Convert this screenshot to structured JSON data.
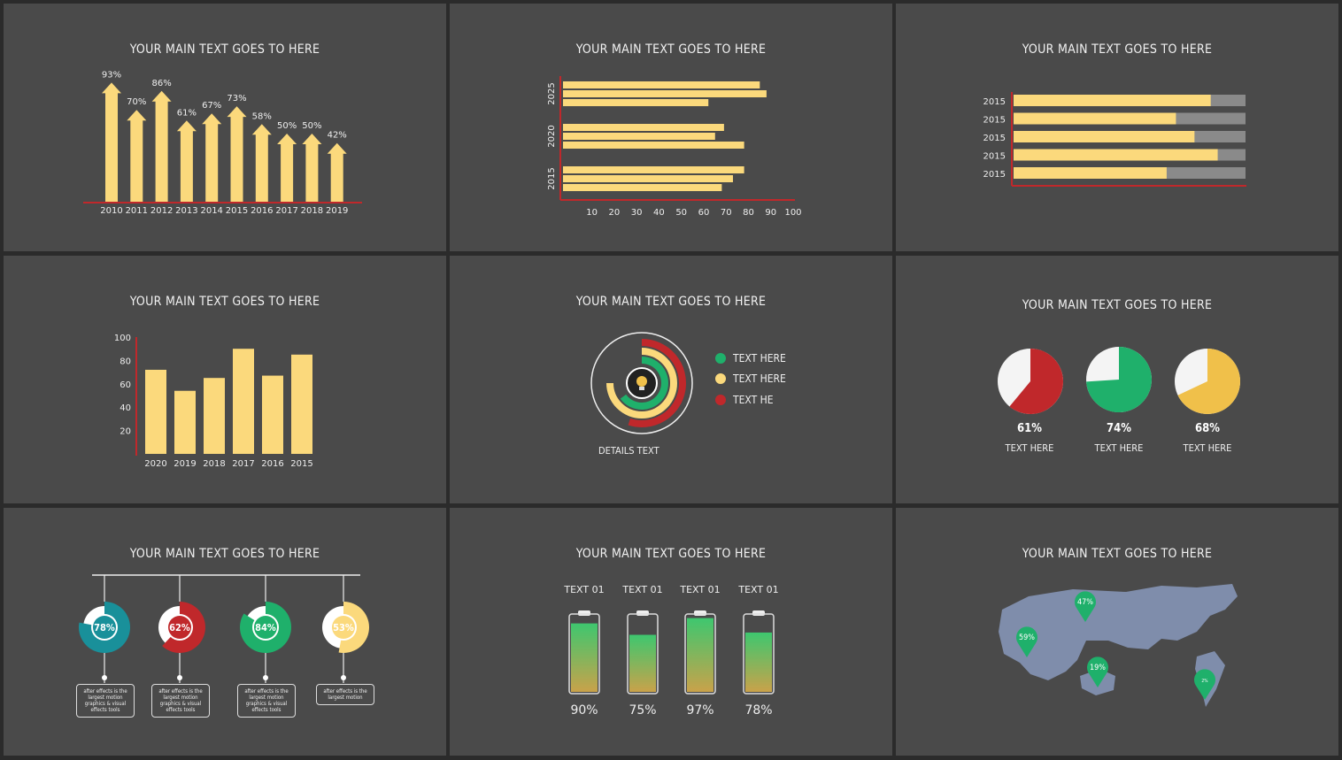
{
  "colors": {
    "yellow": "#fbd97c",
    "red": "#c0282b",
    "green": "#1fb06b",
    "teal": "#19909a",
    "gold": "#f0c04a",
    "gray": "#8a8a8a",
    "panel": "#4a4a4a"
  },
  "panels": {
    "p1": {
      "title": "YOUR MAIN TEXT GOES TO HERE"
    },
    "p2": {
      "title": "YOUR MAIN TEXT GOES TO HERE"
    },
    "p3": {
      "title": "YOUR MAIN TEXT GOES TO HERE"
    },
    "p4": {
      "title": "YOUR MAIN TEXT GOES TO HERE"
    },
    "p5": {
      "title": "YOUR MAIN TEXT GOES TO HERE",
      "details": "DETAILS TEXT",
      "legend": [
        {
          "label": "TEXT HERE",
          "color": "#1fb06b"
        },
        {
          "label": "TEXT HERE",
          "color": "#fbd97c"
        },
        {
          "label": "TEXT HE",
          "color": "#c0282b"
        }
      ]
    },
    "p6": {
      "title": "YOUR MAIN TEXT GOES TO HERE"
    },
    "p7": {
      "title": "YOUR MAIN TEXT GOES TO HERE",
      "box_text": "after effects is the largest motion graphics & visual effects tools",
      "box_text_short": "after effects is the largest motion"
    },
    "p8": {
      "title": "YOUR MAIN TEXT GOES TO HERE"
    },
    "p9": {
      "title": "YOUR MAIN TEXT GOES TO HERE"
    }
  },
  "chart_data": [
    {
      "type": "bar",
      "id": "arrow-bars",
      "categories": [
        "2010",
        "2011",
        "2012",
        "2013",
        "2014",
        "2015",
        "2016",
        "2017",
        "2018",
        "2019"
      ],
      "values": [
        93,
        70,
        86,
        61,
        67,
        73,
        58,
        50,
        50,
        42
      ],
      "value_labels": [
        "93%",
        "70%",
        "86%",
        "61%",
        "67%",
        "73%",
        "58%",
        "50%",
        "50%",
        "42%"
      ],
      "ylim": [
        0,
        100
      ]
    },
    {
      "type": "bar",
      "id": "horizontal-groups",
      "orientation": "horizontal",
      "categories": [
        "2025",
        "2020",
        "2015"
      ],
      "series": [
        {
          "values": [
            93,
            77,
            86
          ]
        },
        {
          "values": [
            96,
            73,
            81
          ]
        },
        {
          "values": [
            70,
            86,
            76
          ]
        }
      ],
      "xticks": [
        10,
        20,
        30,
        40,
        50,
        60,
        70,
        80,
        90,
        100
      ],
      "xlim": [
        5,
        100
      ]
    },
    {
      "type": "bar",
      "id": "progress-bars",
      "orientation": "horizontal",
      "categories": [
        "2015",
        "2015",
        "2015",
        "2015",
        "2015"
      ],
      "values": [
        85,
        70,
        78,
        88,
        66
      ],
      "max": 100
    },
    {
      "type": "bar",
      "id": "vertical-bars",
      "categories": [
        "2020",
        "2019",
        "2018",
        "2017",
        "2016",
        "2015"
      ],
      "values": [
        72,
        54,
        65,
        90,
        67,
        85
      ],
      "yticks": [
        20,
        40,
        60,
        80,
        100
      ],
      "ylim": [
        0,
        100
      ]
    },
    {
      "type": "pie",
      "id": "radial-rings",
      "series": [
        {
          "name": "TEXT HERE",
          "value": 65,
          "color": "#1fb06b"
        },
        {
          "name": "TEXT HERE",
          "value": 75,
          "color": "#fbd97c"
        },
        {
          "name": "TEXT HE",
          "value": 55,
          "color": "#c0282b"
        }
      ]
    },
    {
      "type": "pie",
      "id": "three-pies",
      "items": [
        {
          "value": 61,
          "label": "61%",
          "caption": "TEXT HERE",
          "color": "#c0282b"
        },
        {
          "value": 74,
          "label": "74%",
          "caption": "TEXT HERE",
          "color": "#1fb06b"
        },
        {
          "value": 68,
          "label": "68%",
          "caption": "TEXT HERE",
          "color": "#f0c04a"
        }
      ]
    },
    {
      "type": "pie",
      "id": "donut-steps",
      "items": [
        {
          "value": 78,
          "label": "78%",
          "color": "#19909a"
        },
        {
          "value": 62,
          "label": "62%",
          "color": "#c0282b"
        },
        {
          "value": 84,
          "label": "84%",
          "color": "#1fb06b"
        },
        {
          "value": 53,
          "label": "53%",
          "color": "#fbd97c"
        }
      ]
    },
    {
      "type": "bar",
      "id": "batteries",
      "categories": [
        "TEXT 01",
        "TEXT 01",
        "TEXT 01",
        "TEXT 01"
      ],
      "values": [
        90,
        75,
        97,
        78
      ],
      "value_labels": [
        "90%",
        "75%",
        "97%",
        "78%"
      ]
    },
    {
      "type": "map",
      "id": "world-map",
      "markers": [
        {
          "label": "47%"
        },
        {
          "label": "59%"
        },
        {
          "label": "19%"
        },
        {
          "label": "2%"
        }
      ]
    }
  ]
}
